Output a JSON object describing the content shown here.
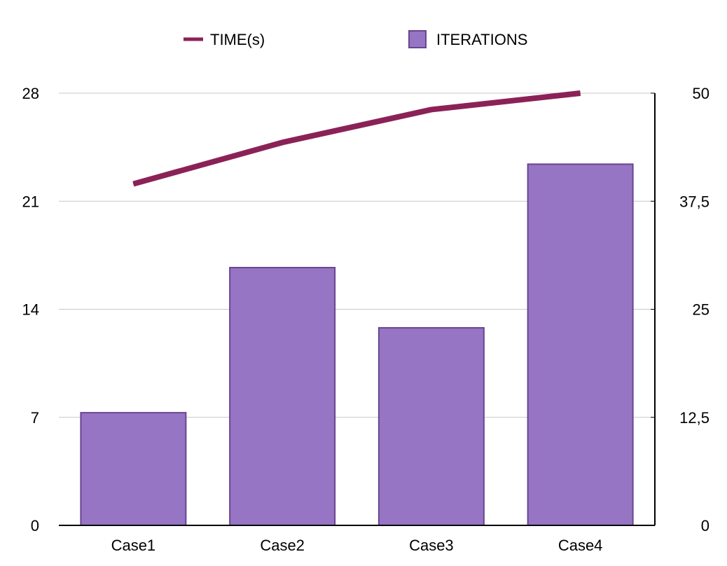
{
  "chart_data": {
    "type": "bar",
    "categories": [
      "Case1",
      "Case2",
      "Case3",
      "Case4"
    ],
    "series": [
      {
        "name": "ITERATIONS",
        "type": "bar",
        "axis": "left",
        "values": [
          7.3,
          16.7,
          12.8,
          23.4
        ]
      },
      {
        "name": "TIME(s)",
        "type": "line",
        "axis": "right",
        "values": [
          39.5,
          44.3,
          48.1,
          50
        ]
      }
    ],
    "y_left": {
      "ticks": [
        0,
        7,
        14,
        21,
        28
      ],
      "tick_labels": [
        "0",
        "7",
        "14",
        "21",
        "28"
      ],
      "ylim": [
        0,
        28
      ]
    },
    "y_right": {
      "ticks": [
        0,
        12.5,
        25,
        37.5,
        50
      ],
      "tick_labels": [
        "0",
        "12,5",
        "25",
        "37,5",
        "50"
      ],
      "ylim": [
        0,
        50
      ]
    },
    "grid": true,
    "legend_position": "top",
    "title": "",
    "xlabel": "",
    "ylabel": "",
    "colors": {
      "bar_fill": "#9575C4",
      "bar_stroke": "#6B4490",
      "line": "#8B2257",
      "grid": "#C8C8C8",
      "axis": "#000000"
    }
  }
}
